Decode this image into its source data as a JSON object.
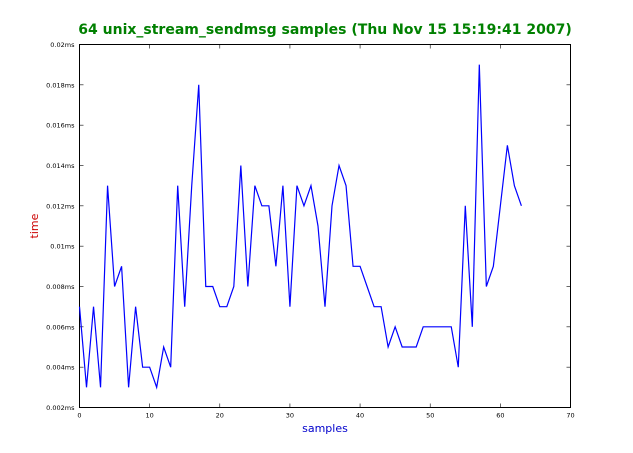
{
  "chart_data": {
    "type": "line",
    "title": "64 unix_stream_sendmsg samples (Thu Nov 15 15:19:41 2007)",
    "xlabel": "samples",
    "ylabel": "time",
    "xlim": [
      0,
      70
    ],
    "ylim": [
      0.002,
      0.02
    ],
    "x_ticks": [
      0,
      10,
      20,
      30,
      40,
      50,
      60,
      70
    ],
    "x_tick_labels": [
      "0",
      "10",
      "20",
      "30",
      "40",
      "50",
      "60",
      "70"
    ],
    "y_ticks": [
      0.002,
      0.004,
      0.006,
      0.008,
      0.01,
      0.012,
      0.014,
      0.016,
      0.018,
      0.02
    ],
    "y_tick_labels": [
      "0.002ms",
      "0.004ms",
      "0.006ms",
      "0.008ms",
      "0.01ms",
      "0.012ms",
      "0.014ms",
      "0.016ms",
      "0.018ms",
      "0.02ms"
    ],
    "grid": false,
    "colors": {
      "line": "#0000ff",
      "title": "#008000",
      "xlabel": "#0000cc",
      "ylabel": "#cc0000"
    },
    "series": [
      {
        "x": [
          0,
          1,
          2,
          3,
          4,
          5,
          6,
          7,
          8,
          9,
          10,
          11,
          12,
          13,
          14,
          15,
          16,
          17,
          18,
          19,
          20,
          21,
          22,
          23,
          24,
          25,
          26,
          27,
          28,
          29,
          30,
          31,
          32,
          33,
          34,
          35,
          36,
          37,
          38,
          39,
          40,
          41,
          42,
          43,
          44,
          45,
          46,
          47,
          48,
          49,
          50,
          51,
          52,
          53,
          54,
          55,
          56,
          57,
          58,
          59,
          60,
          61,
          62,
          63
        ],
        "values": [
          0.007,
          0.003,
          0.007,
          0.003,
          0.013,
          0.008,
          0.009,
          0.003,
          0.007,
          0.004,
          0.004,
          0.003,
          0.005,
          0.004,
          0.013,
          0.007,
          0.013,
          0.018,
          0.008,
          0.008,
          0.007,
          0.007,
          0.008,
          0.014,
          0.008,
          0.013,
          0.012,
          0.012,
          0.009,
          0.013,
          0.007,
          0.013,
          0.012,
          0.013,
          0.011,
          0.007,
          0.012,
          0.014,
          0.013,
          0.009,
          0.009,
          0.008,
          0.007,
          0.007,
          0.005,
          0.006,
          0.005,
          0.005,
          0.005,
          0.006,
          0.006,
          0.006,
          0.006,
          0.006,
          0.004,
          0.012,
          0.006,
          0.019,
          0.008,
          0.009,
          0.012,
          0.015,
          0.013,
          0.012
        ]
      }
    ]
  }
}
